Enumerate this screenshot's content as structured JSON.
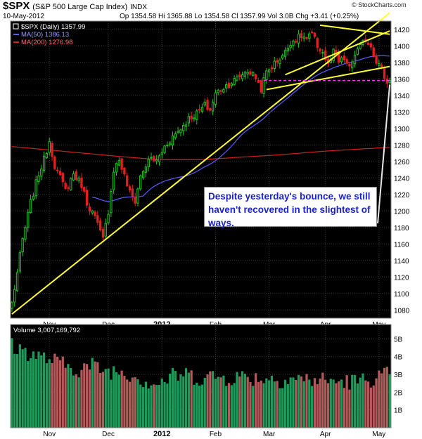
{
  "header": {
    "symbol": "$SPX",
    "name": "(S&P 500 Large Cap Index)",
    "exchange": "INDX",
    "date": "10-May-2012",
    "ohlc_line": "Op 1354.58  Hi 1365.88  Lo 1354.58  Cl 1357.99  Vol 3.0B  Chg +3.41 (+0.25%)",
    "watermark": "© StockCharts.com"
  },
  "legend": {
    "price": "$SPX (Daily) 1357.99",
    "ma50": "MA(50) 1386.13",
    "ma200": "MA(200) 1276.98",
    "volume": "Volume 3,007,169,792"
  },
  "annotation": "Despite yesterday's bounce, we still haven't recovered in the slightest of ways.",
  "colors": {
    "up": "#22c422",
    "down": "#e02020",
    "ma50": "#5c5cff",
    "ma200": "#d02020",
    "trendline": "#ffff33",
    "support": "#ff33ff",
    "vol_up": "#1e9a5a",
    "vol_down": "#b25a5a"
  },
  "chart_data": {
    "type": "candlestick",
    "price_axis": {
      "ticks": [
        1080,
        1100,
        1120,
        1140,
        1160,
        1180,
        1200,
        1220,
        1240,
        1260,
        1280,
        1300,
        1320,
        1340,
        1360,
        1380,
        1400,
        1420
      ],
      "range": [
        1070,
        1430
      ]
    },
    "volume_axis": {
      "ticks": [
        "1B",
        "2B",
        "3B",
        "4B",
        "5B"
      ],
      "range_billion": [
        0,
        5.8
      ]
    },
    "month_labels": [
      {
        "label": "Nov",
        "index": 14
      },
      {
        "label": "Dec",
        "index": 36
      },
      {
        "label": "2012",
        "index": 56
      },
      {
        "label": "Feb",
        "index": 76
      },
      {
        "label": "Mar",
        "index": 96
      },
      {
        "label": "Apr",
        "index": 117
      },
      {
        "label": "May",
        "index": 137
      }
    ],
    "close_anchors": [
      [
        0,
        1088
      ],
      [
        2,
        1125
      ],
      [
        4,
        1165
      ],
      [
        7,
        1210
      ],
      [
        10,
        1245
      ],
      [
        12,
        1262
      ],
      [
        14,
        1285
      ],
      [
        16,
        1255
      ],
      [
        18,
        1240
      ],
      [
        20,
        1225
      ],
      [
        23,
        1245
      ],
      [
        26,
        1232
      ],
      [
        28,
        1210
      ],
      [
        31,
        1192
      ],
      [
        34,
        1165
      ],
      [
        36,
        1200
      ],
      [
        38,
        1250
      ],
      [
        40,
        1262
      ],
      [
        42,
        1242
      ],
      [
        44,
        1222
      ],
      [
        46,
        1212
      ],
      [
        48,
        1242
      ],
      [
        50,
        1255
      ],
      [
        52,
        1264
      ],
      [
        54,
        1260
      ],
      [
        57,
        1278
      ],
      [
        60,
        1290
      ],
      [
        63,
        1300
      ],
      [
        66,
        1312
      ],
      [
        69,
        1318
      ],
      [
        72,
        1328
      ],
      [
        74,
        1322
      ],
      [
        76,
        1342
      ],
      [
        79,
        1350
      ],
      [
        82,
        1356
      ],
      [
        84,
        1360
      ],
      [
        86,
        1366
      ],
      [
        88,
        1370
      ],
      [
        91,
        1362
      ],
      [
        93,
        1348
      ],
      [
        95,
        1368
      ],
      [
        97,
        1375
      ],
      [
        99,
        1382
      ],
      [
        102,
        1392
      ],
      [
        104,
        1405
      ],
      [
        106,
        1408
      ],
      [
        108,
        1412
      ],
      [
        110,
        1408
      ],
      [
        112,
        1414
      ],
      [
        114,
        1400
      ],
      [
        116,
        1392
      ],
      [
        118,
        1376
      ],
      [
        120,
        1392
      ],
      [
        122,
        1380
      ],
      [
        124,
        1384
      ],
      [
        126,
        1372
      ],
      [
        128,
        1390
      ],
      [
        130,
        1398
      ],
      [
        132,
        1408
      ],
      [
        134,
        1400
      ],
      [
        136,
        1382
      ],
      [
        138,
        1372
      ],
      [
        140,
        1354
      ],
      [
        141,
        1358
      ]
    ],
    "last_close": 1357.99,
    "volume_billion_anchors": [
      [
        0,
        4.6
      ],
      [
        5,
        4.3
      ],
      [
        10,
        4.0
      ],
      [
        15,
        3.8
      ],
      [
        20,
        3.5
      ],
      [
        25,
        3.3
      ],
      [
        30,
        3.5
      ],
      [
        35,
        3.2
      ],
      [
        40,
        3.2
      ],
      [
        45,
        3.0
      ],
      [
        50,
        2.6
      ],
      [
        55,
        2.5
      ],
      [
        60,
        2.9
      ],
      [
        65,
        3.0
      ],
      [
        70,
        2.8
      ],
      [
        75,
        2.9
      ],
      [
        80,
        2.8
      ],
      [
        85,
        2.9
      ],
      [
        90,
        2.8
      ],
      [
        95,
        2.8
      ],
      [
        100,
        2.7
      ],
      [
        105,
        2.8
      ],
      [
        110,
        2.7
      ],
      [
        115,
        2.7
      ],
      [
        120,
        2.6
      ],
      [
        125,
        2.6
      ],
      [
        130,
        2.6
      ],
      [
        135,
        2.8
      ],
      [
        140,
        3.0
      ],
      [
        141,
        3.0
      ]
    ],
    "last_volume_billion": 3.0,
    "ma50_start_index": 30,
    "ma200_anchors": [
      [
        0,
        1278
      ],
      [
        20,
        1272
      ],
      [
        40,
        1266
      ],
      [
        55,
        1262
      ],
      [
        70,
        1262
      ],
      [
        85,
        1265
      ],
      [
        100,
        1268
      ],
      [
        115,
        1272
      ],
      [
        130,
        1275
      ],
      [
        141,
        1277
      ]
    ],
    "trendlines": [
      {
        "name": "long uptrend",
        "from": [
          0,
          1075
        ],
        "to": [
          141,
          1440
        ]
      },
      {
        "name": "upper channel",
        "from": [
          115,
          1425
        ],
        "to": [
          141,
          1414
        ]
      },
      {
        "name": "lower wedge",
        "from": [
          95,
          1347
        ],
        "to": [
          141,
          1375
        ]
      },
      {
        "name": "rising wedge top",
        "from": [
          102,
          1365
        ],
        "to": [
          141,
          1418
        ]
      }
    ],
    "support_level": {
      "value": 1358,
      "from_index": 94,
      "to_index": 141
    }
  }
}
